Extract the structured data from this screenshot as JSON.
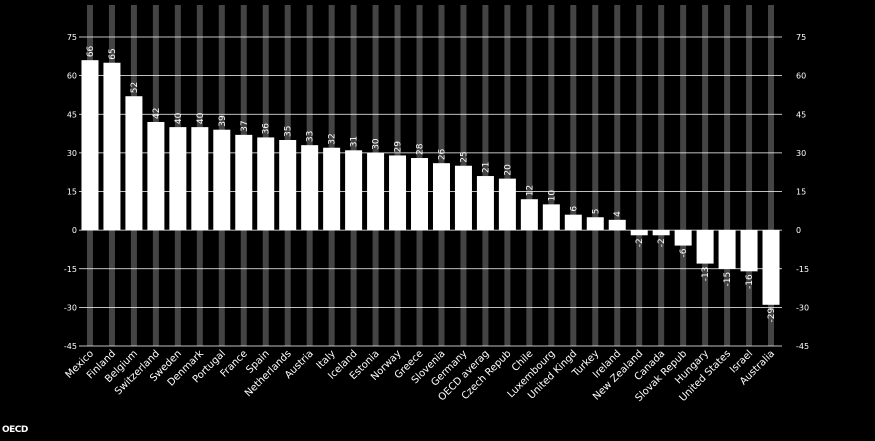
{
  "chart_data": {
    "type": "bar",
    "categories": [
      "Mexico",
      "Finland",
      "Belgium",
      "Switzerland",
      "Sweden",
      "Denmark",
      "Portugal",
      "France",
      "Spain",
      "Netherlands",
      "Austria",
      "Italy",
      "Iceland",
      "Estonia",
      "Norway",
      "Greece",
      "Slovenia",
      "Germany",
      "OECD averag",
      "Czech Repub",
      "Chile",
      "Luxembourg",
      "United Kingd",
      "Turkey",
      "Ireland",
      "New Zealand",
      "Canada",
      "Slovak Repub",
      "Hungary",
      "United States",
      "Israel",
      "Australia"
    ],
    "values": [
      66,
      65,
      52,
      42,
      40,
      40,
      39,
      37,
      36,
      35,
      33,
      32,
      31,
      30,
      29,
      28,
      26,
      25,
      21,
      20,
      12,
      10,
      6,
      5,
      4,
      -2,
      -2,
      -6,
      -13,
      -15,
      -16,
      -29
    ],
    "data_labels": [
      "66",
      "65",
      "52",
      "42",
      "40",
      "40",
      "39",
      "37",
      "36",
      "35",
      "33",
      "32",
      "31",
      "30",
      "29",
      "28",
      "26",
      "25",
      "21",
      "20",
      "12",
      "10",
      "6",
      "5",
      "4",
      "-2",
      "-2",
      "-6",
      "-13",
      "-15",
      "-16",
      "-29"
    ],
    "ylim": [
      -45,
      75
    ],
    "yticks": [
      75,
      60,
      45,
      30,
      15,
      0,
      -15,
      -30,
      -45
    ],
    "ytick_labels": [
      "75",
      "60",
      "45",
      "30",
      "15",
      "0",
      "-15",
      "-30",
      "-45"
    ],
    "grid": true,
    "title": "",
    "xlabel": "",
    "ylabel": "",
    "colors": {
      "background": "#000000",
      "bar": "#ffffff",
      "band": "#444444",
      "grid": "#ffffff",
      "text": "#ffffff"
    }
  },
  "logo": {
    "text": "OECD"
  }
}
